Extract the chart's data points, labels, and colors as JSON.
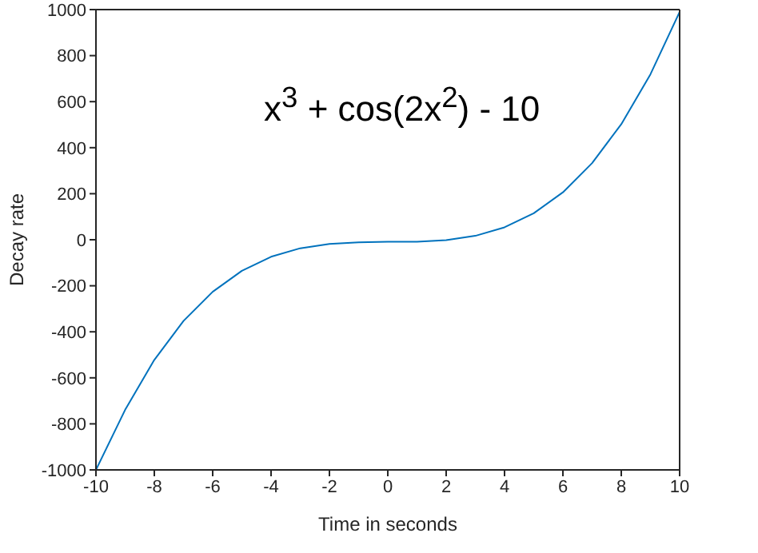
{
  "chart_data": {
    "type": "line",
    "xlabel": "Time in seconds",
    "ylabel": "Decay rate",
    "annotations": [
      "x$^{3}$ + cos(2x$^{2}$) - 10"
    ],
    "x": [
      -10,
      -9,
      -8,
      -7,
      -6,
      -5,
      -4,
      -3,
      -2,
      -1,
      0,
      1,
      2,
      3,
      4,
      5,
      6,
      7,
      8,
      9,
      10
    ],
    "series": [
      {
        "color": "#0072bd",
        "values": [
          -1000,
          -739,
          -522,
          -353,
          -226,
          -135,
          -74,
          -37,
          -18,
          -11,
          -9,
          -9,
          -2,
          17,
          54,
          115,
          206,
          333,
          502,
          719,
          990
        ]
      }
    ],
    "xlim": [
      -10,
      10
    ],
    "xticks": [
      -10,
      -8,
      -6,
      -4,
      -2,
      0,
      2,
      4,
      6,
      8,
      10
    ],
    "ylim": [
      -1000,
      1000
    ],
    "yticks": [
      -1000,
      -800,
      -600,
      -400,
      -200,
      0,
      200,
      400,
      600,
      800,
      1000
    ],
    "grid": false,
    "legend": false,
    "marker": "none",
    "line_style": "solid"
  }
}
